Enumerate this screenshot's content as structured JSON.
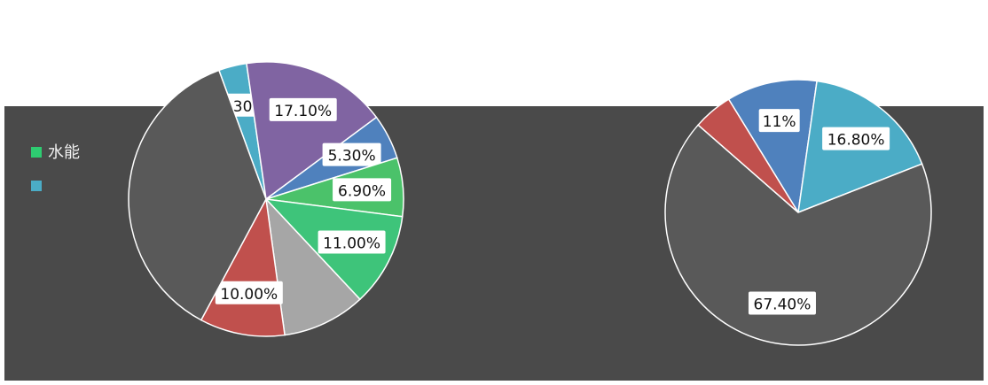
{
  "chart_data": [
    {
      "type": "pie",
      "title": "",
      "slices": [
        {
          "label": "3.30%",
          "value": 3.3,
          "color": "#4bacc6"
        },
        {
          "label": "17.10%",
          "value": 17.1,
          "color": "#8064a2"
        },
        {
          "label": "5.30%",
          "value": 5.3,
          "color": "#4f81bd"
        },
        {
          "label": "6.90%",
          "value": 6.9,
          "color": "#4bc26a"
        },
        {
          "label": "11.00%",
          "value": 11.0,
          "color": "#3ec47a"
        },
        {
          "label": "",
          "value": 9.8,
          "color": "#a6a6a6"
        },
        {
          "label": "10.00%",
          "value": 10.0,
          "color": "#c0504d"
        },
        {
          "label": "",
          "value": 36.6,
          "color": "#595959"
        }
      ],
      "legend": [
        {
          "label": "水能",
          "color": "#2ecc71"
        },
        {
          "label": "",
          "color": "#4bacc6"
        }
      ]
    },
    {
      "type": "pie",
      "title": "",
      "slices": [
        {
          "label": "11%",
          "value": 11.0,
          "color": "#4f81bd"
        },
        {
          "label": "16.80%",
          "value": 16.8,
          "color": "#4bacc6"
        },
        {
          "label": "67.40%",
          "value": 67.4,
          "color": "#595959"
        },
        {
          "label": "",
          "value": 4.8,
          "color": "#c0504d"
        }
      ]
    }
  ],
  "colors": {
    "background": "#4a4a4a",
    "panel": "#555555",
    "white": "#ffffff"
  }
}
